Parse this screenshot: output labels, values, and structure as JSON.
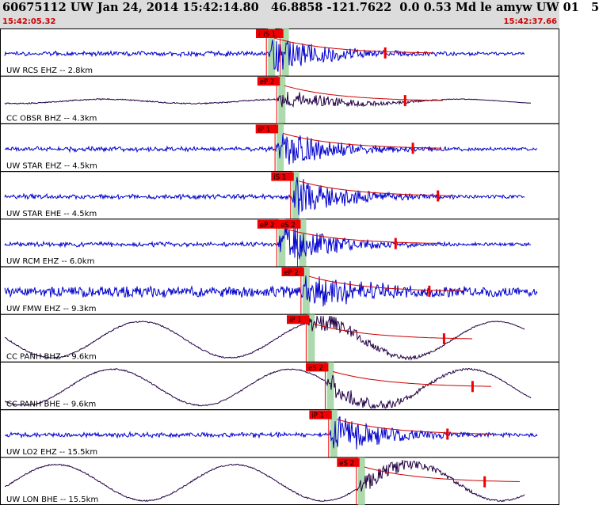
{
  "header": {
    "title": "60675112 UW Jan 24, 2014 15:42:14.80   46.8858 -121.7622  0.0 0.53 Md le amyw UW 01   5",
    "start_time": "15:42:05.32",
    "end_time": "15:42:37.66"
  },
  "colors": {
    "header_bg": "#dcdcdc",
    "time_text": "#cc0000",
    "short_period_trace": "#0000cc",
    "broadband_trace": "#220044",
    "pick_marker": "#ee0000",
    "amplitude_window": "#9fd49f",
    "coda_fit": "#cc0000"
  },
  "traces": [
    {
      "label": "UW RCS EHZ -- 2.8km",
      "channel_type": "short-period",
      "picks": [
        {
          "label": "iP",
          "t": 15.4
        },
        {
          "label": "iS 1",
          "t": 16.2
        }
      ]
    },
    {
      "label": "CC OBSR BHZ -- 4.3km",
      "channel_type": "broadband",
      "picks": [
        {
          "label": "eP 2",
          "t": 16.0
        }
      ]
    },
    {
      "label": "UW STAR EHZ -- 4.5km",
      "channel_type": "short-period",
      "picks": [
        {
          "label": "iP 1",
          "t": 15.9
        }
      ]
    },
    {
      "label": "UW STAR EHE -- 4.5km",
      "channel_type": "short-period",
      "picks": [
        {
          "label": "iS 1",
          "t": 16.8
        }
      ]
    },
    {
      "label": "UW RCM EHZ -- 6.0km",
      "channel_type": "short-period",
      "picks": [
        {
          "label": "eP 2",
          "t": 16.0
        },
        {
          "label": "eS 2",
          "t": 17.2
        }
      ]
    },
    {
      "label": "UW FMW EHZ -- 9.3km",
      "channel_type": "short-period",
      "picks": [
        {
          "label": "eP 2",
          "t": 17.4
        }
      ]
    },
    {
      "label": "CC PANH BHZ -- 9.6km",
      "channel_type": "broadband",
      "picks": [
        {
          "label": "iP 1",
          "t": 17.7
        }
      ]
    },
    {
      "label": "CC PANH BHE -- 9.6km",
      "channel_type": "broadband",
      "picks": [
        {
          "label": "eS 2",
          "t": 18.8
        }
      ]
    },
    {
      "label": "UW LO2 EHZ -- 15.5km",
      "channel_type": "short-period",
      "picks": [
        {
          "label": "iP 1",
          "t": 19.0
        }
      ]
    },
    {
      "label": "UW LON BHE -- 15.5km",
      "channel_type": "broadband",
      "picks": [
        {
          "label": "eS 2",
          "t": 20.6
        }
      ]
    }
  ]
}
